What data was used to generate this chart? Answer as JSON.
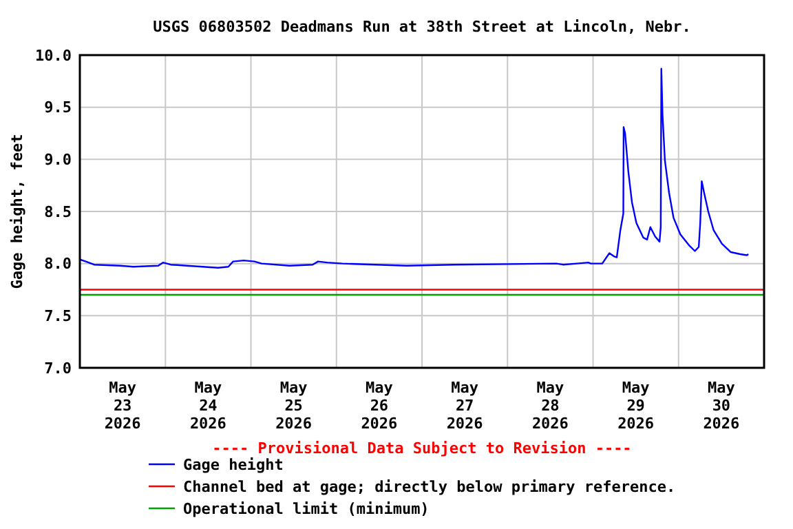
{
  "chart_data": {
    "type": "line",
    "title": "USGS 06803502 Deadmans Run at 38th Street at Lincoln, Nebr.",
    "ylabel": "Gage height, feet",
    "annotations": [
      "---- Provisional Data Subject to Revision ----"
    ],
    "xlim": [
      "2026-05-23T00:00",
      "2026-05-31T00:00"
    ],
    "xticks": [
      {
        "value": "2026-05-23T12:00",
        "label": "May\n23\n2026"
      },
      {
        "value": "2026-05-24T00:00",
        "label": null
      },
      {
        "value": "2026-05-24T12:00",
        "label": "May\n24\n2026"
      },
      {
        "value": "2026-05-25T00:00",
        "label": null
      },
      {
        "value": "2026-05-25T12:00",
        "label": "May\n25\n2026"
      },
      {
        "value": "2026-05-26T00:00",
        "label": null
      },
      {
        "value": "2026-05-26T12:00",
        "label": "May\n26\n2026"
      },
      {
        "value": "2026-05-27T00:00",
        "label": null
      },
      {
        "value": "2026-05-27T12:00",
        "label": "May\n27\n2026"
      },
      {
        "value": "2026-05-28T00:00",
        "label": null
      },
      {
        "value": "2026-05-28T12:00",
        "label": "May\n28\n2026"
      },
      {
        "value": "2026-05-29T00:00",
        "label": null
      },
      {
        "value": "2026-05-29T12:00",
        "label": "May\n29\n2026"
      },
      {
        "value": "2026-05-30T00:00",
        "label": null
      },
      {
        "value": "2026-05-30T12:00",
        "label": "May\n30\n2026"
      }
    ],
    "ylim": [
      7,
      10
    ],
    "yticks": [
      {
        "value": 7,
        "label": "7.0"
      },
      {
        "value": 7.5,
        "label": "7.5"
      },
      {
        "value": 8,
        "label": "8.0"
      },
      {
        "value": 8.5,
        "label": "8.5"
      },
      {
        "value": 9,
        "label": "9.0"
      },
      {
        "value": 9.5,
        "label": "9.5"
      },
      {
        "value": 10,
        "label": "10.0"
      }
    ],
    "grid": true,
    "legend": "bottom",
    "series": [
      {
        "name": "Gage height",
        "color": "#0000ff",
        "x": [
          "2026-05-23T00:00",
          "2026-05-23T01:40",
          "2026-05-23T04:00",
          "2026-05-23T11:20",
          "2026-05-23T15:00",
          "2026-05-23T22:00",
          "2026-05-23T23:20",
          "2026-05-24T01:30",
          "2026-05-24T06:00",
          "2026-05-24T14:50",
          "2026-05-24T17:40",
          "2026-05-24T19:00",
          "2026-05-24T22:00",
          "2026-05-25T01:00",
          "2026-05-25T03:00",
          "2026-05-25T10:50",
          "2026-05-25T17:20",
          "2026-05-25T18:50",
          "2026-05-25T21:25",
          "2026-05-26T01:40",
          "2026-05-26T19:40",
          "2026-05-27T09:00",
          "2026-05-28T13:40",
          "2026-05-28T15:35",
          "2026-05-28T19:30",
          "2026-05-28T22:40",
          "2026-05-28T23:25",
          "2026-05-29T02:35",
          "2026-05-29T04:35",
          "2026-05-29T05:50",
          "2026-05-29T06:40",
          "2026-05-29T07:40",
          "2026-05-29T08:30",
          "2026-05-29T08:35",
          "2026-05-29T09:00",
          "2026-05-29T09:55",
          "2026-05-29T10:55",
          "2026-05-29T12:10",
          "2026-05-29T14:05",
          "2026-05-29T15:10",
          "2026-05-29T16:05",
          "2026-05-29T17:25",
          "2026-05-29T18:40",
          "2026-05-29T19:00",
          "2026-05-29T19:10",
          "2026-05-29T19:30",
          "2026-05-29T20:10",
          "2026-05-29T21:20",
          "2026-05-29T22:35",
          "2026-05-30T00:30",
          "2026-05-30T03:05",
          "2026-05-30T04:35",
          "2026-05-30T05:40",
          "2026-05-30T06:05",
          "2026-05-30T06:30",
          "2026-05-30T07:10",
          "2026-05-30T08:20",
          "2026-05-30T09:50",
          "2026-05-30T12:10",
          "2026-05-30T14:40",
          "2026-05-30T17:20",
          "2026-05-30T19:10",
          "2026-05-30T19:35"
        ],
        "values": [
          8.04,
          8.02,
          7.99,
          7.98,
          7.97,
          7.98,
          8.01,
          7.99,
          7.98,
          7.96,
          7.97,
          8.02,
          8.03,
          8.02,
          8.0,
          7.98,
          7.99,
          8.02,
          8.01,
          8.0,
          7.98,
          7.99,
          8.0,
          7.99,
          8.0,
          8.01,
          8.0,
          8.0,
          8.1,
          8.07,
          8.06,
          8.32,
          8.48,
          9.31,
          9.25,
          8.88,
          8.59,
          8.39,
          8.25,
          8.23,
          8.35,
          8.26,
          8.21,
          8.35,
          9.87,
          9.43,
          8.99,
          8.68,
          8.44,
          8.28,
          8.17,
          8.12,
          8.16,
          8.39,
          8.79,
          8.68,
          8.5,
          8.32,
          8.19,
          8.11,
          8.09,
          8.08,
          8.09
        ]
      }
    ],
    "ref_lines": [
      {
        "axis": "y",
        "value": 7.75,
        "label": "Channel bed at gage; directly below primary reference.",
        "color": "#ff0000"
      },
      {
        "axis": "y",
        "value": 7.7,
        "label": "Operational limit (minimum)",
        "color": "#00a000"
      }
    ]
  }
}
